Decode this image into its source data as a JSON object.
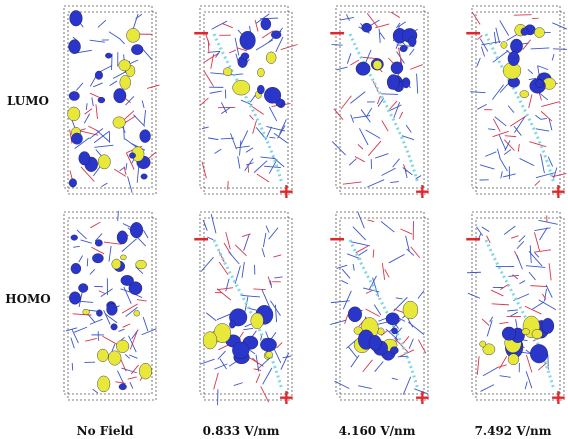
{
  "rows": [
    {
      "label": "LUMO"
    },
    {
      "label": "HOMO"
    }
  ],
  "columns": [
    {
      "label": "No Field",
      "field": false
    },
    {
      "label": "0.833 V/nm",
      "field": true
    },
    {
      "label": "4.160 V/nm",
      "field": true
    },
    {
      "label": "7.492 V/nm",
      "field": true
    }
  ],
  "electrode_signs": {
    "negative": "−",
    "positive": "+"
  },
  "colors": {
    "lobe_blue": "#2a36c9",
    "lobe_yellow": "#e8e83a",
    "bond_blue": "#3a55cc",
    "bond_red": "#d8354a",
    "field_path": "#7fd8e0",
    "electrode_sign": "#e0282c",
    "cell_box": "#555555"
  }
}
